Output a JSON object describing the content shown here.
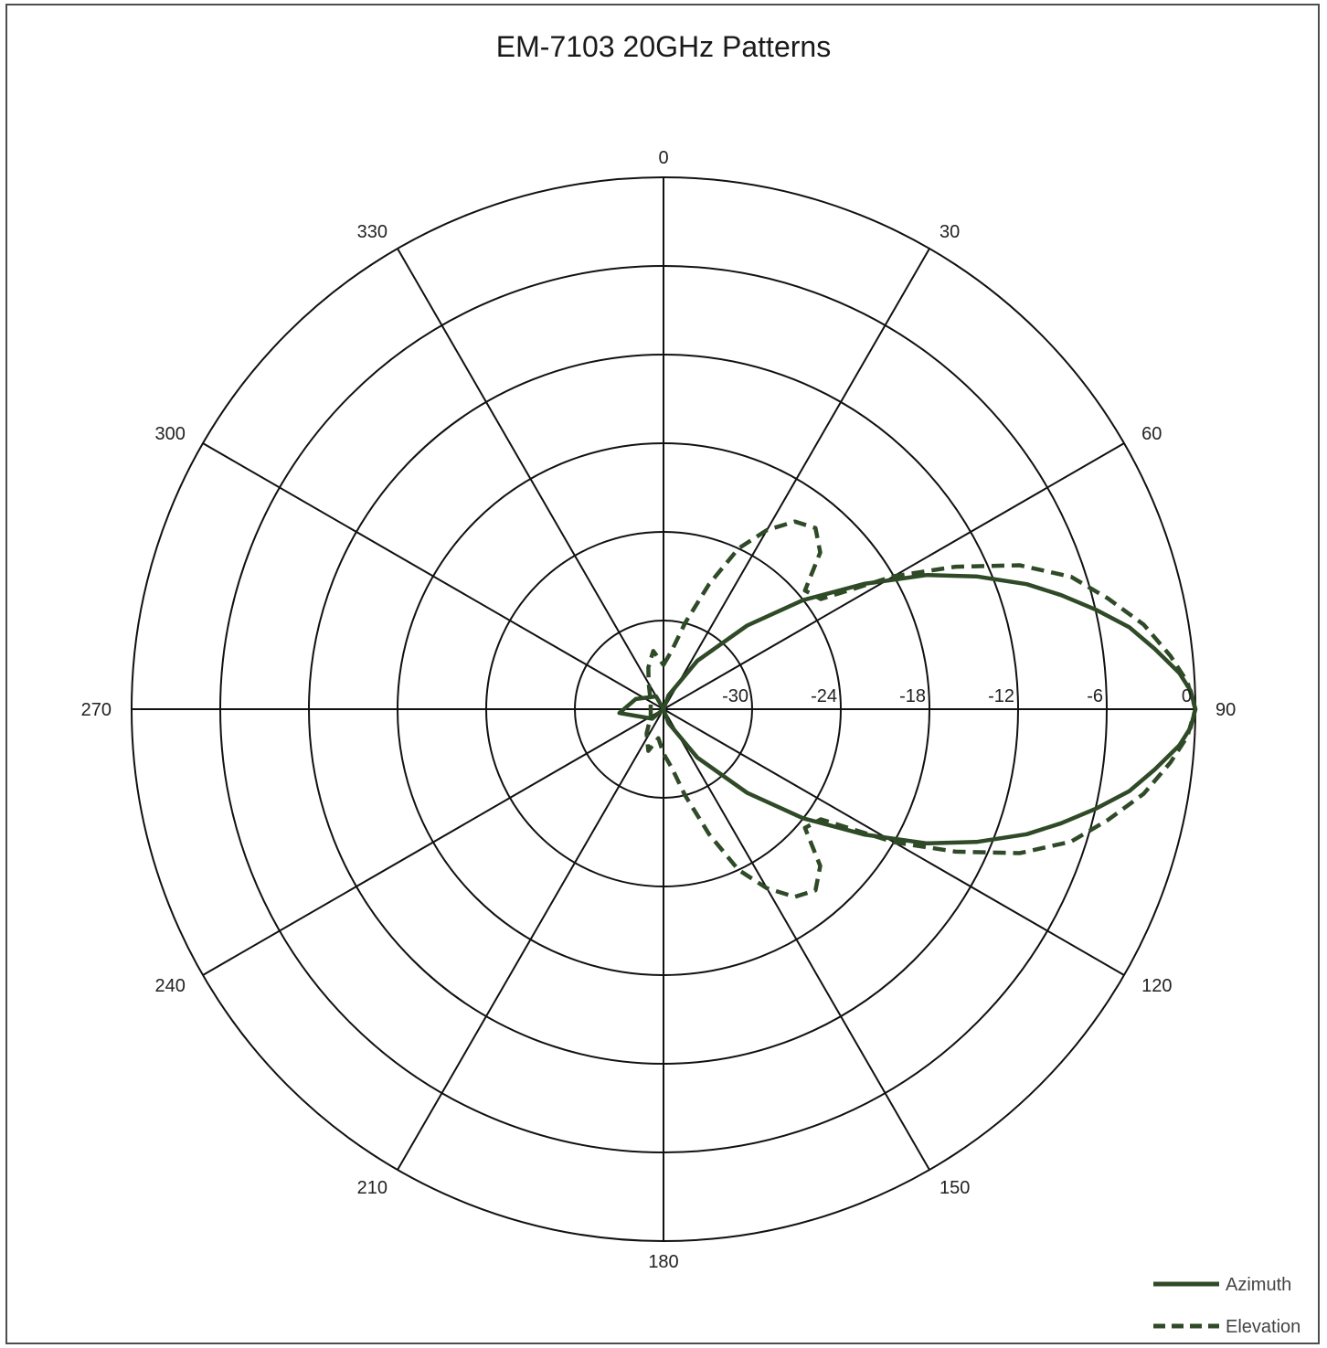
{
  "chart_data": {
    "type": "line",
    "subtype": "polar",
    "title": "EM-7103 20GHz Patterns",
    "angle_ticks": [
      0,
      30,
      60,
      90,
      120,
      150,
      180,
      210,
      240,
      270,
      300,
      330
    ],
    "angle_tick_labels": [
      "0",
      "30",
      "60",
      "90",
      "120",
      "150",
      "180",
      "210",
      "240",
      "270",
      "300",
      "330"
    ],
    "angle_direction": "clockwise",
    "angle_zero": "top",
    "radial_range": [
      -36,
      0
    ],
    "radial_ticks": [
      -30,
      -24,
      -18,
      -12,
      -6,
      0
    ],
    "radial_tick_labels": [
      "-30",
      "-24",
      "-18",
      "-12",
      "-6",
      "0"
    ],
    "grid": true,
    "legend_position": "bottom-right",
    "series_color": "#2f4a26",
    "series": [
      {
        "name": "Azimuth",
        "style": "solid",
        "points": [
          {
            "angle": 0,
            "value": -36
          },
          {
            "angle": 20,
            "value": -35
          },
          {
            "angle": 35,
            "value": -32
          },
          {
            "angle": 45,
            "value": -28
          },
          {
            "angle": 52,
            "value": -24
          },
          {
            "angle": 58,
            "value": -20
          },
          {
            "angle": 63,
            "value": -16
          },
          {
            "angle": 67,
            "value": -13
          },
          {
            "angle": 71,
            "value": -10
          },
          {
            "angle": 74,
            "value": -8
          },
          {
            "angle": 77,
            "value": -6
          },
          {
            "angle": 80,
            "value": -4
          },
          {
            "angle": 83,
            "value": -2.5
          },
          {
            "angle": 86,
            "value": -1
          },
          {
            "angle": 88,
            "value": -0.3
          },
          {
            "angle": 90,
            "value": 0
          },
          {
            "angle": 92,
            "value": -0.3
          },
          {
            "angle": 94,
            "value": -1
          },
          {
            "angle": 97,
            "value": -2.5
          },
          {
            "angle": 100,
            "value": -4
          },
          {
            "angle": 103,
            "value": -6
          },
          {
            "angle": 106,
            "value": -8
          },
          {
            "angle": 109,
            "value": -10
          },
          {
            "angle": 113,
            "value": -13
          },
          {
            "angle": 117,
            "value": -16
          },
          {
            "angle": 122,
            "value": -20
          },
          {
            "angle": 128,
            "value": -24
          },
          {
            "angle": 135,
            "value": -28
          },
          {
            "angle": 145,
            "value": -32
          },
          {
            "angle": 160,
            "value": -35
          },
          {
            "angle": 180,
            "value": -36
          },
          {
            "angle": 230,
            "value": -35
          },
          {
            "angle": 265,
            "value": -33
          },
          {
            "angle": 290,
            "value": -34
          },
          {
            "angle": 330,
            "value": -35
          },
          {
            "angle": 360,
            "value": -36
          }
        ]
      },
      {
        "name": "Elevation",
        "style": "dashed",
        "points": [
          {
            "angle": 0,
            "value": -33
          },
          {
            "angle": 8,
            "value": -32
          },
          {
            "angle": 14,
            "value": -30
          },
          {
            "angle": 20,
            "value": -27
          },
          {
            "angle": 25,
            "value": -24
          },
          {
            "angle": 30,
            "value": -22
          },
          {
            "angle": 35,
            "value": -20.5
          },
          {
            "angle": 40,
            "value": -20
          },
          {
            "angle": 45,
            "value": -21
          },
          {
            "angle": 50,
            "value": -23.5
          },
          {
            "angle": 55,
            "value": -23
          },
          {
            "angle": 60,
            "value": -18
          },
          {
            "angle": 64,
            "value": -14
          },
          {
            "angle": 68,
            "value": -10
          },
          {
            "angle": 72,
            "value": -7
          },
          {
            "angle": 76,
            "value": -5
          },
          {
            "angle": 80,
            "value": -3
          },
          {
            "angle": 84,
            "value": -1.5
          },
          {
            "angle": 87,
            "value": -0.5
          },
          {
            "angle": 90,
            "value": 0
          },
          {
            "angle": 93,
            "value": -0.5
          },
          {
            "angle": 96,
            "value": -1.5
          },
          {
            "angle": 100,
            "value": -3
          },
          {
            "angle": 104,
            "value": -5
          },
          {
            "angle": 108,
            "value": -7
          },
          {
            "angle": 112,
            "value": -10
          },
          {
            "angle": 116,
            "value": -14
          },
          {
            "angle": 120,
            "value": -18
          },
          {
            "angle": 125,
            "value": -23
          },
          {
            "angle": 130,
            "value": -23.5
          },
          {
            "angle": 135,
            "value": -21
          },
          {
            "angle": 140,
            "value": -20
          },
          {
            "angle": 145,
            "value": -20.5
          },
          {
            "angle": 150,
            "value": -22
          },
          {
            "angle": 155,
            "value": -24
          },
          {
            "angle": 160,
            "value": -27
          },
          {
            "angle": 166,
            "value": -30
          },
          {
            "angle": 172,
            "value": -32
          },
          {
            "angle": 180,
            "value": -33
          },
          {
            "angle": 190,
            "value": -34
          },
          {
            "angle": 200,
            "value": -33
          },
          {
            "angle": 215,
            "value": -34
          },
          {
            "angle": 240,
            "value": -35
          },
          {
            "angle": 300,
            "value": -35
          },
          {
            "angle": 330,
            "value": -34
          },
          {
            "angle": 340,
            "value": -33
          },
          {
            "angle": 350,
            "value": -32
          },
          {
            "angle": 360,
            "value": -33
          }
        ]
      }
    ]
  }
}
